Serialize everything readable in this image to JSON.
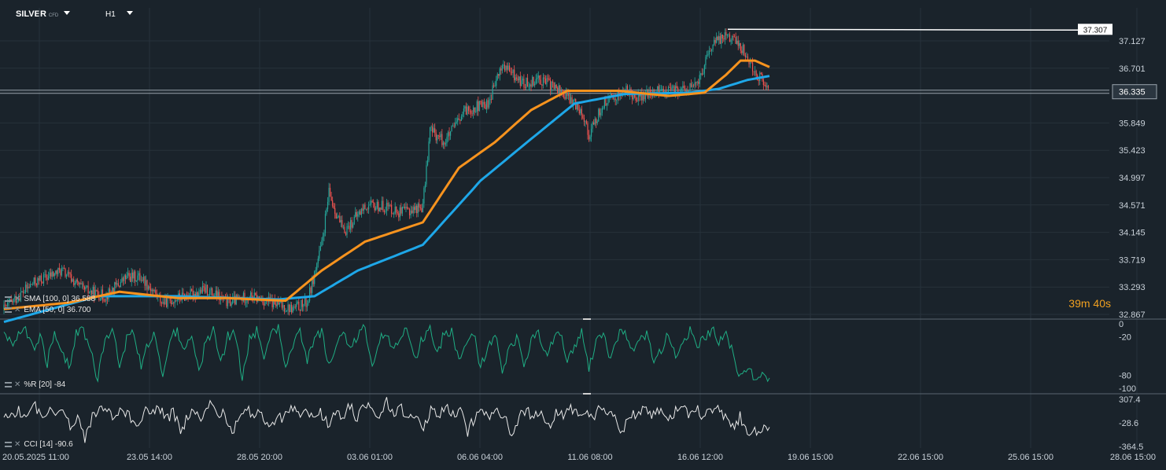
{
  "toolbar": {
    "symbol": "SILVER",
    "symbol_type": "CFD",
    "timeframe": "H1"
  },
  "countdown": {
    "minutes": "39",
    "m_label": "m ",
    "seconds": "40",
    "s_label": "s"
  },
  "colors": {
    "background": "#1a232b",
    "grid": "#27323b",
    "candle_up": "#26a69a",
    "candle_down": "#ef5350",
    "sma": "#1ea7e8",
    "ema": "#f7931e",
    "williams_r": "#1fae84",
    "cci": "#e8e8e8",
    "countdown": "#f0a020"
  },
  "chart_data": [
    {
      "type": "candlestick",
      "symbol": "SILVER",
      "timeframe": "H1",
      "y_axis_ticks": [
        "37.127",
        "36.701",
        "36.335",
        "35.849",
        "35.423",
        "34.997",
        "34.571",
        "34.145",
        "33.719",
        "33.293",
        "32.867"
      ],
      "ylim": [
        32.867,
        37.5
      ],
      "x_axis_ticks": [
        "20.05.2025 11:00",
        "23.05 14:00",
        "28.05 20:00",
        "03.06 01:00",
        "06.06 04:00",
        "11.06 08:00",
        "16.06 12:00",
        "19.06 15:00",
        "22.06 15:00",
        "25.06 15:00",
        "28.06 15:00"
      ],
      "current_price": "36.335",
      "high_marker": "37.307",
      "close_path": [
        [
          0,
          32.95
        ],
        [
          4,
          33.35
        ],
        [
          8,
          33.55
        ],
        [
          11,
          33.25
        ],
        [
          14,
          33.15
        ],
        [
          17,
          33.45
        ],
        [
          19,
          33.45
        ],
        [
          22,
          33.05
        ],
        [
          25,
          33.15
        ],
        [
          28,
          33.25
        ],
        [
          31,
          33.05
        ],
        [
          34,
          33.15
        ],
        [
          37,
          33.05
        ],
        [
          40,
          32.95
        ],
        [
          42,
          33.05
        ],
        [
          44,
          33.95
        ],
        [
          45,
          34.75
        ],
        [
          47,
          34.15
        ],
        [
          50,
          34.55
        ],
        [
          53,
          34.55
        ],
        [
          55,
          34.45
        ],
        [
          58,
          34.55
        ],
        [
          59,
          35.75
        ],
        [
          61,
          35.55
        ],
        [
          64,
          36.05
        ],
        [
          67,
          36.15
        ],
        [
          69,
          36.75
        ],
        [
          72,
          36.45
        ],
        [
          74,
          36.55
        ],
        [
          77,
          36.35
        ],
        [
          80,
          36.05
        ],
        [
          81,
          35.65
        ],
        [
          83,
          36.15
        ],
        [
          86,
          36.35
        ],
        [
          88,
          36.25
        ],
        [
          91,
          36.35
        ],
        [
          94,
          36.35
        ],
        [
          96,
          36.45
        ],
        [
          98,
          37.05
        ],
        [
          100,
          37.25
        ],
        [
          102,
          37.05
        ],
        [
          104,
          36.65
        ],
        [
          106,
          36.35
        ]
      ],
      "candles_total": 106,
      "overlays": [
        {
          "name": "SMA [100, 0]",
          "last_value": "36.588",
          "path": [
            [
              0,
              32.75
            ],
            [
              13,
              33.15
            ],
            [
              24,
              33.15
            ],
            [
              38,
              33.1
            ],
            [
              43,
              33.15
            ],
            [
              49,
              33.55
            ],
            [
              58,
              33.95
            ],
            [
              66,
              34.95
            ],
            [
              73,
              35.6
            ],
            [
              79,
              36.15
            ],
            [
              86,
              36.3
            ],
            [
              95,
              36.32
            ],
            [
              99,
              36.38
            ],
            [
              103,
              36.52
            ],
            [
              106,
              36.58
            ]
          ]
        },
        {
          "name": "EMA [50, 0]",
          "last_value": "36.700",
          "path": [
            [
              0,
              32.95
            ],
            [
              9,
              33.05
            ],
            [
              16,
              33.22
            ],
            [
              24,
              33.12
            ],
            [
              31,
              33.12
            ],
            [
              39,
              33.08
            ],
            [
              44,
              33.55
            ],
            [
              50,
              34.0
            ],
            [
              58,
              34.3
            ],
            [
              63,
              35.15
            ],
            [
              68,
              35.55
            ],
            [
              73,
              36.05
            ],
            [
              78,
              36.35
            ],
            [
              85,
              36.35
            ],
            [
              92,
              36.27
            ],
            [
              97,
              36.32
            ],
            [
              100,
              36.6
            ],
            [
              102,
              36.82
            ],
            [
              104,
              36.82
            ],
            [
              106,
              36.72
            ]
          ]
        }
      ]
    },
    {
      "type": "line",
      "name": "%R [20]",
      "last_value": "-84",
      "y_axis_ticks": [
        "0",
        "-20",
        "-80",
        "-100"
      ],
      "ylim": [
        -100,
        0
      ],
      "values": [
        -10,
        -30,
        -15,
        -8,
        -40,
        -20,
        -60,
        -12,
        -35,
        -70,
        -15,
        -10,
        -45,
        -85,
        -20,
        -12,
        -60,
        -25,
        -10,
        -70,
        -30,
        -15,
        -90,
        -20,
        -12,
        -45,
        -15,
        -80,
        -25,
        -10,
        -60,
        -20,
        -15,
        -85,
        -25,
        -10,
        -50,
        -15,
        -8,
        -70,
        -35,
        -12,
        -55,
        -20,
        -12,
        -65,
        -30,
        -10,
        -45,
        -15,
        -8,
        -60,
        -25,
        -12,
        -40,
        -15,
        -10,
        -55,
        -20,
        -8,
        -45,
        -15,
        -10,
        -60,
        -30,
        -12,
        -70,
        -35,
        -15,
        -75,
        -40,
        -20,
        -65,
        -30,
        -10,
        -50,
        -25,
        -12,
        -60,
        -35,
        -15,
        -70,
        -30,
        -10,
        -55,
        -20,
        -8,
        -45,
        -30,
        -12,
        -60,
        -40,
        -15,
        -55,
        -30,
        -10,
        -40,
        -20,
        -8,
        -25,
        -15,
        -50,
        -85,
        -65,
        -90,
        -80,
        -84
      ]
    },
    {
      "type": "line",
      "name": "CCI [14]",
      "last_value": "-90.6",
      "y_axis_ticks": [
        "307.4",
        "-28.6",
        "-364.5"
      ],
      "ylim": [
        -364.5,
        307.4
      ],
      "values": [
        120,
        60,
        150,
        40,
        250,
        80,
        160,
        20,
        200,
        -80,
        90,
        -250,
        60,
        200,
        120,
        30,
        180,
        60,
        -100,
        140,
        80,
        200,
        20,
        120,
        -150,
        60,
        160,
        40,
        260,
        80,
        120,
        -200,
        40,
        180,
        60,
        120,
        -100,
        60,
        20,
        200,
        100,
        160,
        30,
        120,
        -60,
        150,
        80,
        200,
        40,
        260,
        120,
        60,
        300,
        80,
        180,
        40,
        120,
        -80,
        160,
        60,
        220,
        80,
        140,
        -150,
        60,
        180,
        40,
        120,
        60,
        -250,
        80,
        160,
        40,
        200,
        -100,
        100,
        60,
        180,
        80,
        140,
        20,
        220,
        100,
        40,
        -200,
        120,
        80,
        200,
        40,
        160,
        60,
        120,
        280,
        100,
        200,
        60,
        120,
        150,
        40,
        -100,
        60,
        -200,
        -120,
        -150,
        -90.6
      ]
    }
  ]
}
